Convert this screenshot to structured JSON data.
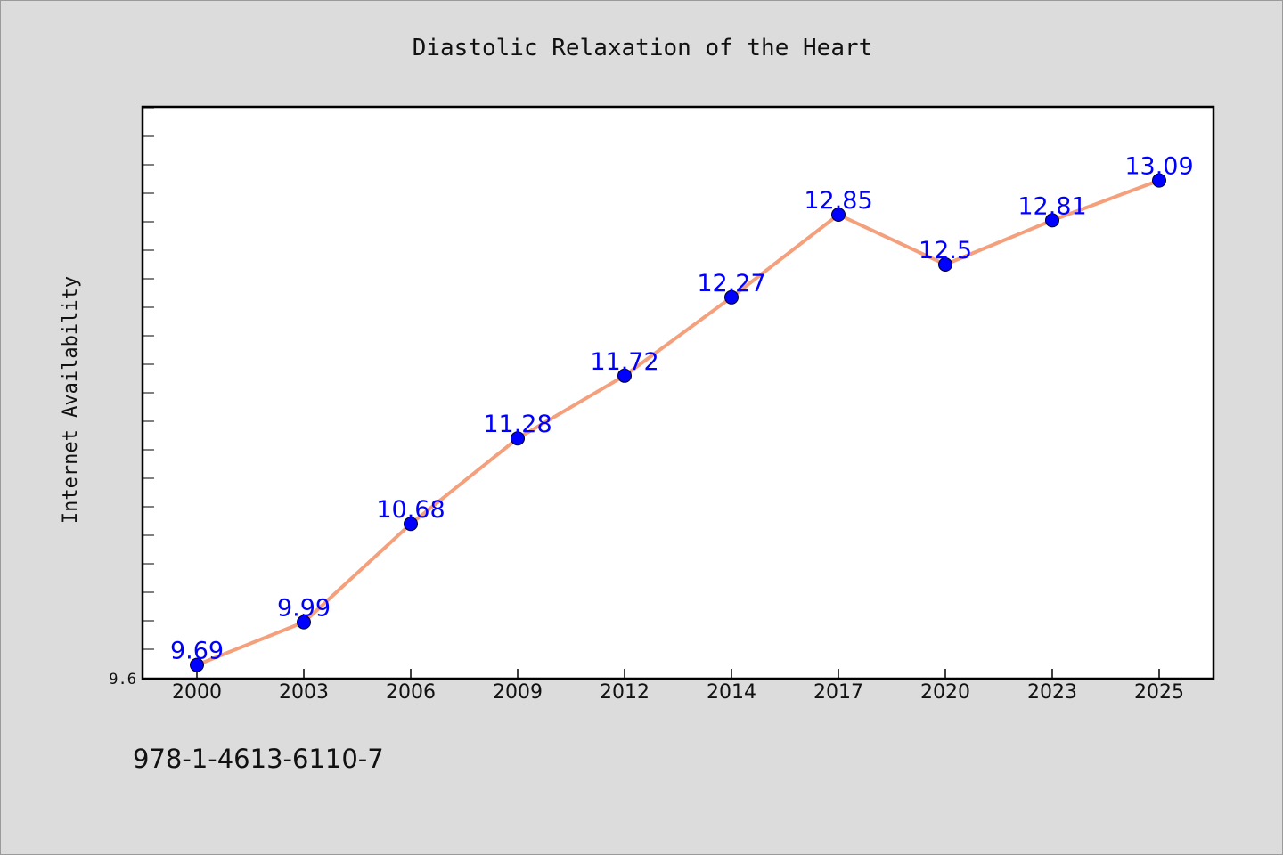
{
  "footer_text": "978-1-4613-6110-7",
  "chart_data": {
    "type": "line",
    "title": "Diastolic Relaxation of the Heart",
    "xlabel": "",
    "ylabel": "Internet Availability",
    "categories": [
      "2000",
      "2003",
      "2006",
      "2009",
      "2012",
      "2014",
      "2017",
      "2020",
      "2023",
      "2025"
    ],
    "series": [
      {
        "values": [
          9.69,
          9.99,
          10.68,
          11.28,
          11.72,
          12.27,
          12.85,
          12.5,
          12.81,
          13.09
        ]
      }
    ],
    "data_labels": [
      "9.69",
      "9.99",
      "10.68",
      "11.28",
      "11.72",
      "12.27",
      "12.85",
      "12.5",
      "12.81",
      "13.09"
    ],
    "y_tick_label": "9.6",
    "ylim": [
      9.6,
      13.6
    ],
    "grid": false,
    "legend": "none",
    "colors": {
      "line": "#f4a07c",
      "marker": "#0000ff",
      "label": "#0000ff"
    }
  }
}
